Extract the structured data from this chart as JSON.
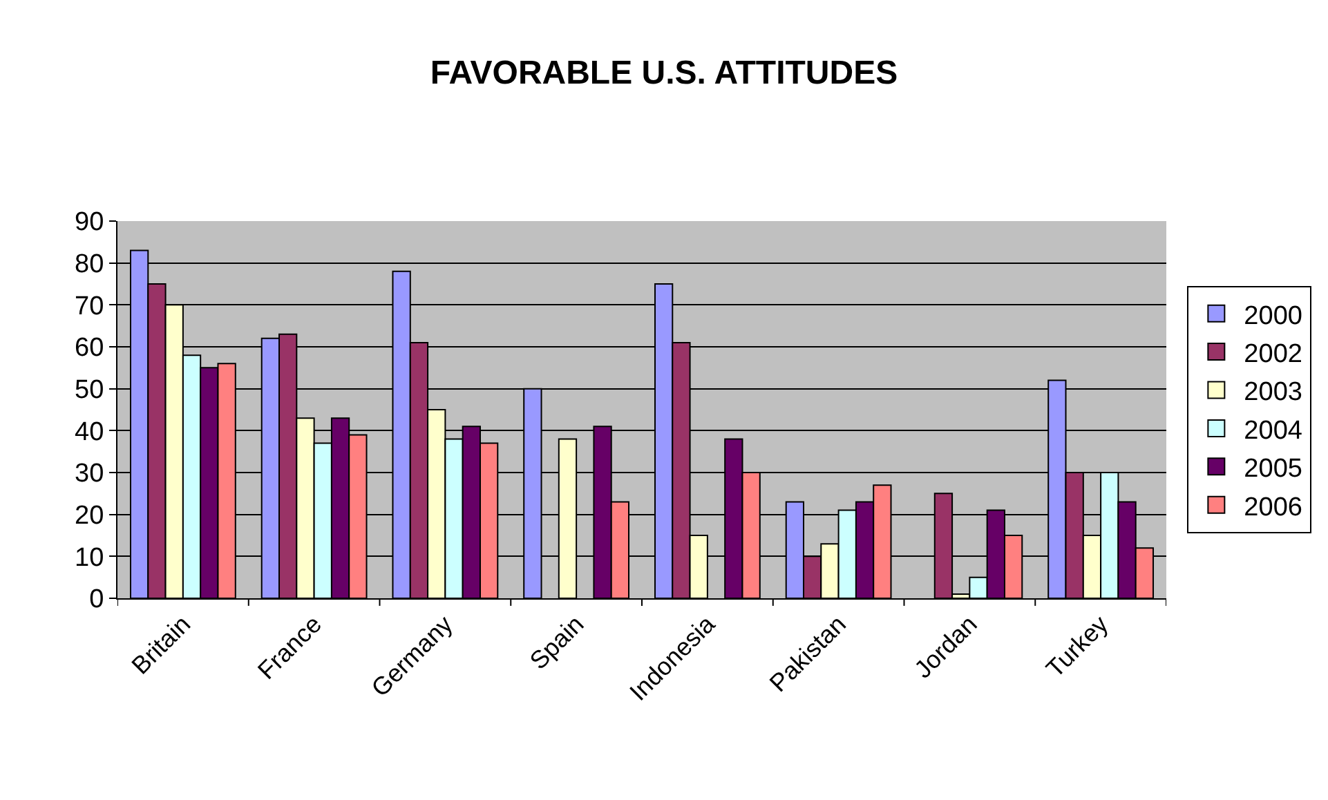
{
  "chart_data": {
    "type": "bar",
    "title": "FAVORABLE U.S. ATTITUDES",
    "categories": [
      "Britain",
      "France",
      "Germany",
      "Spain",
      "Indonesia",
      "Pakistan",
      "Jordan",
      "Turkey"
    ],
    "series": [
      {
        "name": "2000",
        "color": "#9999ff",
        "values": [
          83,
          62,
          78,
          50,
          75,
          23,
          null,
          52
        ]
      },
      {
        "name": "2002",
        "color": "#993366",
        "values": [
          75,
          63,
          61,
          null,
          61,
          10,
          25,
          30
        ]
      },
      {
        "name": "2003",
        "color": "#ffffcc",
        "values": [
          70,
          43,
          45,
          38,
          15,
          13,
          1,
          15
        ]
      },
      {
        "name": "2004",
        "color": "#ccffff",
        "values": [
          58,
          37,
          38,
          null,
          null,
          21,
          5,
          30
        ]
      },
      {
        "name": "2005",
        "color": "#660066",
        "values": [
          55,
          43,
          41,
          41,
          38,
          23,
          21,
          23
        ]
      },
      {
        "name": "2006",
        "color": "#ff8080",
        "values": [
          56,
          39,
          37,
          23,
          30,
          27,
          15,
          12
        ]
      }
    ],
    "ylim": [
      0,
      90
    ],
    "yticks": [
      0,
      10,
      20,
      30,
      40,
      50,
      60,
      70,
      80,
      90
    ],
    "grid": "y",
    "legend": "right"
  }
}
